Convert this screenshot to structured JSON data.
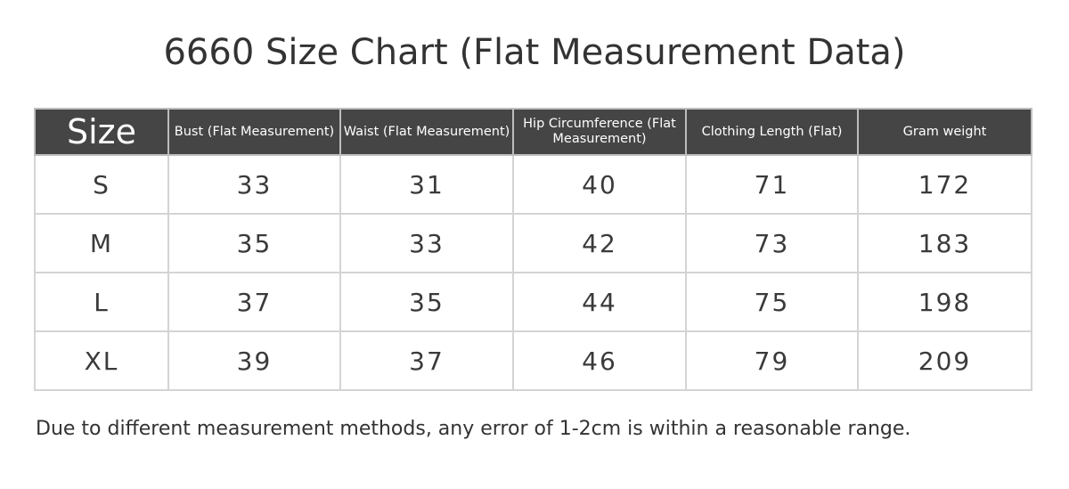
{
  "title": "6660 Size Chart (Flat Measurement Data)",
  "table": {
    "headers": [
      "Size",
      "Bust (Flat Measurement)",
      "Waist  (Flat Measurement)",
      "Hip Circumference (Flat Measurement)",
      "Clothing Length (Flat)",
      "Gram weight"
    ],
    "rows": [
      [
        "S",
        "33",
        "31",
        "40",
        "71",
        "172"
      ],
      [
        "M",
        "35",
        "33",
        "42",
        "73",
        "183"
      ],
      [
        "L",
        "37",
        "35",
        "44",
        "75",
        "198"
      ],
      [
        "XL",
        "39",
        "37",
        "46",
        "79",
        "209"
      ]
    ]
  },
  "note": "Due to different measurement methods, any error of 1-2cm is within a reasonable range.",
  "colors": {
    "header_bg": "#454545",
    "header_text": "#ffffff",
    "border": "#d4d4d4"
  }
}
